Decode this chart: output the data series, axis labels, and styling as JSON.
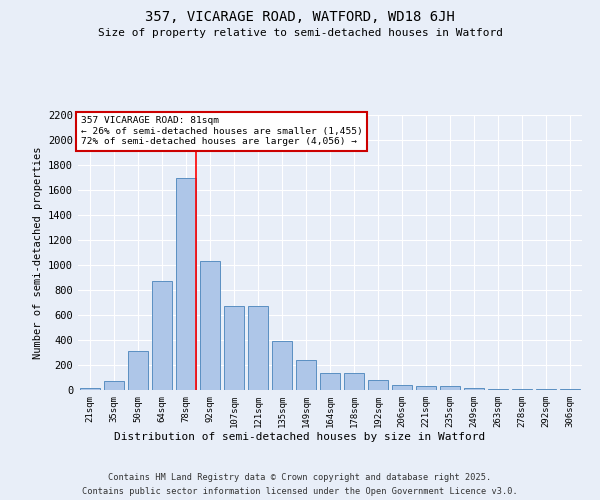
{
  "title1": "357, VICARAGE ROAD, WATFORD, WD18 6JH",
  "title2": "Size of property relative to semi-detached houses in Watford",
  "xlabel": "Distribution of semi-detached houses by size in Watford",
  "ylabel": "Number of semi-detached properties",
  "categories": [
    "21sqm",
    "35sqm",
    "50sqm",
    "64sqm",
    "78sqm",
    "92sqm",
    "107sqm",
    "121sqm",
    "135sqm",
    "149sqm",
    "164sqm",
    "178sqm",
    "192sqm",
    "206sqm",
    "221sqm",
    "235sqm",
    "249sqm",
    "263sqm",
    "278sqm",
    "292sqm",
    "306sqm"
  ],
  "bar_heights": [
    20,
    70,
    310,
    870,
    1700,
    1030,
    670,
    670,
    390,
    240,
    140,
    140,
    80,
    40,
    35,
    30,
    20,
    10,
    5,
    5,
    10
  ],
  "bar_color": "#aec6e8",
  "bar_edge_color": "#5a8fc2",
  "background_color": "#e8eef8",
  "grid_color": "#ffffff",
  "red_line_x": 4.42,
  "annotation_title": "357 VICARAGE ROAD: 81sqm",
  "annotation_line2": "← 26% of semi-detached houses are smaller (1,455)",
  "annotation_line3": "72% of semi-detached houses are larger (4,056) →",
  "annotation_box_color": "#ffffff",
  "annotation_edge_color": "#cc0000",
  "ylim": [
    0,
    2200
  ],
  "yticks": [
    0,
    200,
    400,
    600,
    800,
    1000,
    1200,
    1400,
    1600,
    1800,
    2000,
    2200
  ],
  "footnote1": "Contains HM Land Registry data © Crown copyright and database right 2025.",
  "footnote2": "Contains public sector information licensed under the Open Government Licence v3.0."
}
